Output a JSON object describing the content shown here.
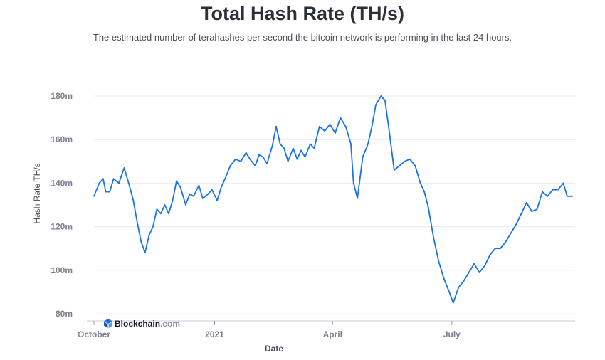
{
  "header": {
    "title": "Total Hash Rate (TH/s)",
    "subtitle": "The estimated number of terahashes per second the bitcoin network is performing in the last 24 hours."
  },
  "brand": {
    "name": "Blockchain",
    "suffix": ".com",
    "icon": "blockchain-logo-icon",
    "color": "#1e6fd9"
  },
  "colors": {
    "line": "#1a73e8",
    "grid": "#e9ecf1",
    "tick": "#7b8190"
  },
  "chart_data": {
    "type": "line",
    "xlabel": "Date",
    "ylabel": "Hash Rate TH/s",
    "x_ticks": [
      "October",
      "2021",
      "April",
      "July"
    ],
    "x_tick_dates": [
      "2020-10-01",
      "2021-01-01",
      "2021-04-01",
      "2021-07-01"
    ],
    "x_range": [
      "2020-10-01",
      "2021-10-03"
    ],
    "ylim": [
      80,
      180
    ],
    "y_ticks": [
      80,
      100,
      120,
      140,
      160,
      180
    ],
    "y_tick_labels": [
      "80m",
      "100m",
      "120m",
      "140m",
      "160m",
      "180m"
    ],
    "grid": true,
    "legend": "none",
    "series": [
      {
        "values": [
          [
            "2020-10-01",
            134
          ],
          [
            "2020-10-05",
            140
          ],
          [
            "2020-10-08",
            142
          ],
          [
            "2020-10-10",
            136
          ],
          [
            "2020-10-13",
            136
          ],
          [
            "2020-10-16",
            142
          ],
          [
            "2020-10-20",
            140
          ],
          [
            "2020-10-24",
            147
          ],
          [
            "2020-10-28",
            139
          ],
          [
            "2020-10-31",
            132
          ],
          [
            "2020-11-03",
            122
          ],
          [
            "2020-11-06",
            113
          ],
          [
            "2020-11-09",
            108
          ],
          [
            "2020-11-12",
            116
          ],
          [
            "2020-11-15",
            120
          ],
          [
            "2020-11-18",
            128
          ],
          [
            "2020-11-21",
            126
          ],
          [
            "2020-11-24",
            130
          ],
          [
            "2020-11-27",
            126
          ],
          [
            "2020-11-30",
            132
          ],
          [
            "2020-12-03",
            141
          ],
          [
            "2020-12-06",
            138
          ],
          [
            "2020-12-10",
            130
          ],
          [
            "2020-12-13",
            135
          ],
          [
            "2020-12-16",
            134
          ],
          [
            "2020-12-20",
            139
          ],
          [
            "2020-12-23",
            133
          ],
          [
            "2020-12-27",
            135
          ],
          [
            "2020-12-30",
            137
          ],
          [
            "2021-01-03",
            132
          ],
          [
            "2021-01-06",
            138
          ],
          [
            "2021-01-09",
            142
          ],
          [
            "2021-01-13",
            148
          ],
          [
            "2021-01-17",
            151
          ],
          [
            "2021-01-21",
            150
          ],
          [
            "2021-01-25",
            154
          ],
          [
            "2021-01-28",
            151
          ],
          [
            "2021-02-01",
            148
          ],
          [
            "2021-02-04",
            153
          ],
          [
            "2021-02-07",
            152
          ],
          [
            "2021-02-10",
            149
          ],
          [
            "2021-02-14",
            157
          ],
          [
            "2021-02-17",
            166
          ],
          [
            "2021-02-20",
            158
          ],
          [
            "2021-02-23",
            156
          ],
          [
            "2021-02-26",
            150
          ],
          [
            "2021-03-02",
            156
          ],
          [
            "2021-03-05",
            151
          ],
          [
            "2021-03-08",
            155
          ],
          [
            "2021-03-11",
            152
          ],
          [
            "2021-03-15",
            158
          ],
          [
            "2021-03-18",
            156
          ],
          [
            "2021-03-22",
            166
          ],
          [
            "2021-03-26",
            164
          ],
          [
            "2021-03-30",
            167
          ],
          [
            "2021-04-03",
            163
          ],
          [
            "2021-04-07",
            170
          ],
          [
            "2021-04-11",
            166
          ],
          [
            "2021-04-15",
            158
          ],
          [
            "2021-04-17",
            140
          ],
          [
            "2021-04-20",
            133
          ],
          [
            "2021-04-24",
            152
          ],
          [
            "2021-04-28",
            158
          ],
          [
            "2021-05-01",
            166
          ],
          [
            "2021-05-04",
            176
          ],
          [
            "2021-05-08",
            180
          ],
          [
            "2021-05-11",
            178
          ],
          [
            "2021-05-14",
            165
          ],
          [
            "2021-05-18",
            146
          ],
          [
            "2021-05-22",
            148
          ],
          [
            "2021-05-26",
            150
          ],
          [
            "2021-05-30",
            151
          ],
          [
            "2021-06-03",
            148
          ],
          [
            "2021-06-07",
            140
          ],
          [
            "2021-06-10",
            136
          ],
          [
            "2021-06-13",
            129
          ],
          [
            "2021-06-17",
            115
          ],
          [
            "2021-06-21",
            104
          ],
          [
            "2021-06-25",
            96
          ],
          [
            "2021-06-29",
            90
          ],
          [
            "2021-07-02",
            85
          ],
          [
            "2021-07-06",
            92
          ],
          [
            "2021-07-10",
            95
          ],
          [
            "2021-07-14",
            99
          ],
          [
            "2021-07-18",
            103
          ],
          [
            "2021-07-22",
            99
          ],
          [
            "2021-07-26",
            102
          ],
          [
            "2021-07-30",
            107
          ],
          [
            "2021-08-03",
            110
          ],
          [
            "2021-08-07",
            110
          ],
          [
            "2021-08-11",
            113
          ],
          [
            "2021-08-15",
            117
          ],
          [
            "2021-08-19",
            121
          ],
          [
            "2021-08-23",
            126
          ],
          [
            "2021-08-27",
            131
          ],
          [
            "2021-08-31",
            127
          ],
          [
            "2021-09-04",
            128
          ],
          [
            "2021-09-08",
            136
          ],
          [
            "2021-09-12",
            134
          ],
          [
            "2021-09-16",
            137
          ],
          [
            "2021-09-20",
            137
          ],
          [
            "2021-09-24",
            140
          ],
          [
            "2021-09-27",
            134
          ],
          [
            "2021-10-01",
            134
          ]
        ]
      }
    ]
  }
}
